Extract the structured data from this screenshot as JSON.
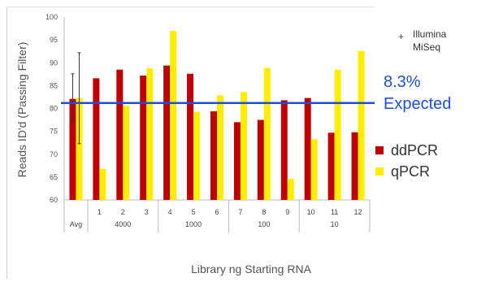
{
  "chart_data": {
    "type": "bar",
    "xlabel": "Library ng Starting RNA",
    "ylabel": "Reads ID'd (Passing Filter)",
    "ylim": [
      60,
      100
    ],
    "yticks": [
      "100",
      "95",
      "90",
      "85",
      "80",
      "75",
      "70",
      "65",
      "60"
    ],
    "categories": [
      "Avg",
      "1",
      "2",
      "3",
      "4",
      "5",
      "6",
      "7",
      "8",
      "9",
      "10",
      "11",
      "12"
    ],
    "groups": [
      {
        "label": "Avg"
      },
      {
        "label": "4000"
      },
      {
        "label": "1000"
      },
      {
        "label": "100"
      },
      {
        "label": "10"
      }
    ],
    "series": [
      {
        "name": "ddPCR",
        "color": "#c00000",
        "values": [
          82.1,
          86.6,
          88.5,
          87.2,
          89.4,
          87.6,
          79.4,
          77.0,
          77.5,
          81.8,
          82.3,
          74.7,
          74.8
        ]
      },
      {
        "name": "qPCR",
        "color": "#ffee00",
        "values": [
          82.3,
          66.8,
          80.6,
          88.8,
          97.0,
          79.3,
          82.9,
          83.6,
          88.9,
          64.6,
          73.3,
          88.5,
          92.6
        ]
      }
    ],
    "error_bars": [
      {
        "category": "Avg",
        "series": "ddPCR",
        "low": 76.8,
        "high": 87.6
      },
      {
        "category": "Avg",
        "series": "qPCR",
        "low": 72.3,
        "high": 92.2
      }
    ],
    "reference_line": {
      "value": 81.2,
      "color": "#1f4fd6"
    },
    "grid": false
  },
  "annotation": {
    "percent": "8.3%",
    "text": "Expected"
  },
  "legend_illumina": {
    "marker": "+",
    "line1": "Illumina",
    "line2": "MiSeq"
  }
}
